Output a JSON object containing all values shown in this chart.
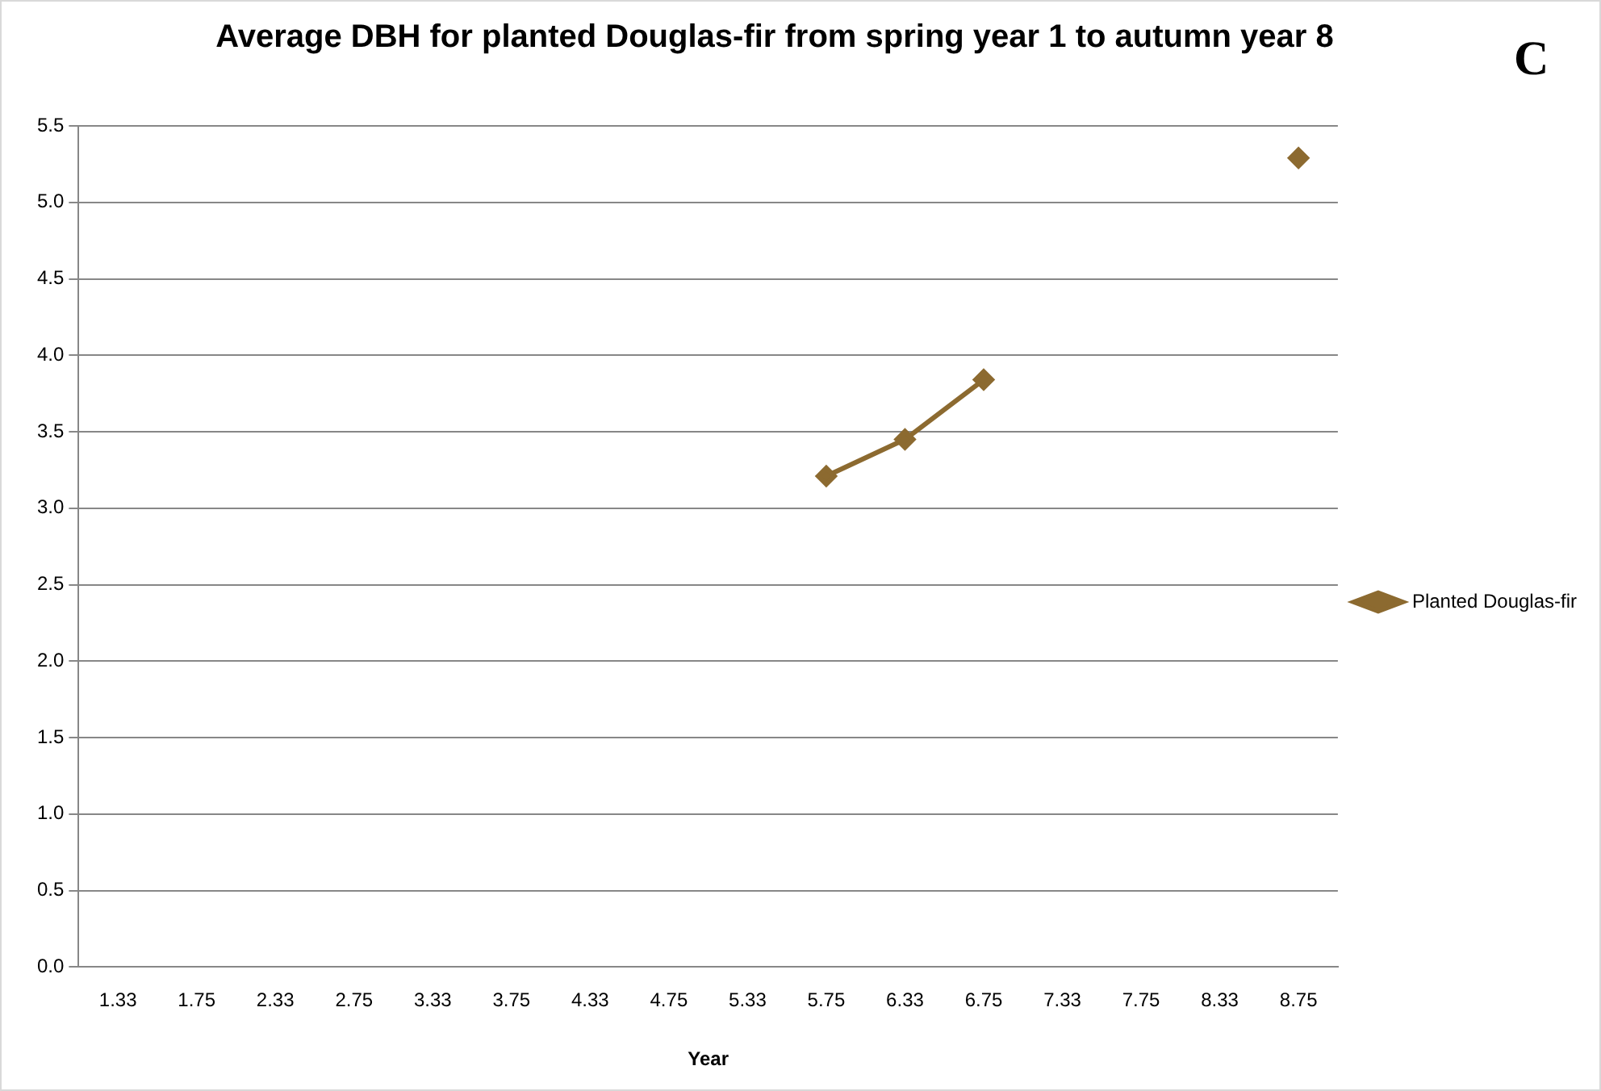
{
  "chart_data": {
    "type": "line",
    "title": "Average DBH for planted Douglas-fir from spring year 1 to autumn year 8",
    "xlabel": "Year",
    "categories": [
      "1.33",
      "1.75",
      "2.33",
      "2.75",
      "3.33",
      "3.75",
      "4.33",
      "4.75",
      "5.33",
      "5.75",
      "6.33",
      "6.75",
      "7.33",
      "7.75",
      "8.33",
      "8.75"
    ],
    "series": [
      {
        "name": "Planted Douglas-fir",
        "color": "#8c6a30",
        "values": [
          null,
          null,
          null,
          null,
          null,
          null,
          null,
          null,
          null,
          3.21,
          3.45,
          3.84,
          null,
          null,
          null,
          5.29
        ]
      }
    ],
    "ylim": [
      0,
      5.5
    ],
    "yticks": [
      {
        "value": 0,
        "label": "0.0"
      },
      {
        "value": 0.5,
        "label": "0.5"
      },
      {
        "value": 1,
        "label": "1.0"
      },
      {
        "value": 1.5,
        "label": "1.5"
      },
      {
        "value": 2,
        "label": "2.0"
      },
      {
        "value": 2.5,
        "label": "2.5"
      },
      {
        "value": 3,
        "label": "3.0"
      },
      {
        "value": 3.5,
        "label": "3.5"
      },
      {
        "value": 4,
        "label": "4.0"
      },
      {
        "value": 4.5,
        "label": "4.5"
      },
      {
        "value": 5,
        "label": "5.0"
      },
      {
        "value": 5.5,
        "label": "5.5"
      }
    ],
    "grid": "y",
    "legend": "right",
    "marker": "diamond",
    "line_style": "solid",
    "annotations": [
      "C"
    ]
  }
}
